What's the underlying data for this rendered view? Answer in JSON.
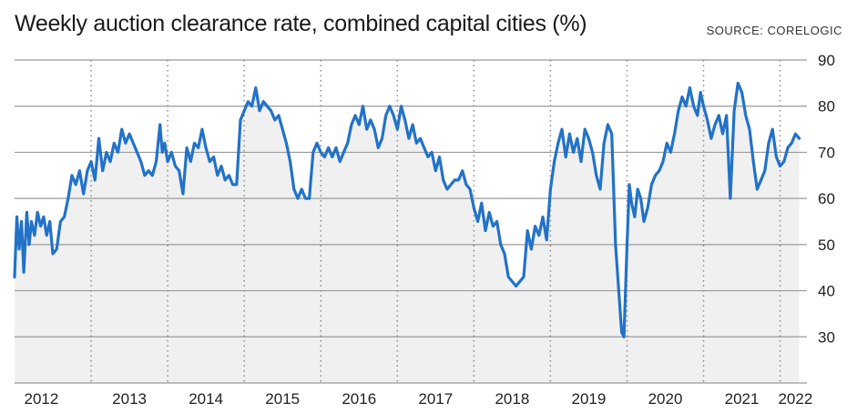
{
  "chart_title": "Weekly auction clearance rate, combined capital cities (%)",
  "source": "SOURCE: CORELOGIC",
  "chart_data": {
    "type": "area",
    "title": "Weekly auction clearance rate, combined capital cities (%)",
    "ylim": [
      20,
      90
    ],
    "xlim": [
      2012.0,
      2022.35
    ],
    "y_ticks": [
      30,
      40,
      50,
      60,
      70,
      80,
      90
    ],
    "x_ticks": [
      {
        "label": "2012",
        "center": 2012.35
      },
      {
        "label": "2013",
        "center": 2013.5
      },
      {
        "label": "2014",
        "center": 2014.5
      },
      {
        "label": "2015",
        "center": 2015.5
      },
      {
        "label": "2016",
        "center": 2016.5
      },
      {
        "label": "2017",
        "center": 2017.5
      },
      {
        "label": "2018",
        "center": 2018.5
      },
      {
        "label": "2019",
        "center": 2019.5
      },
      {
        "label": "2020",
        "center": 2020.5
      },
      {
        "label": "2021",
        "center": 2021.5
      },
      {
        "label": "2022",
        "center": 2022.2
      }
    ],
    "year_dividers": [
      2013,
      2014,
      2015,
      2016,
      2017,
      2018,
      2019,
      2020,
      2021,
      2022
    ],
    "grid": "horizontal solid, vertical dotted at year boundaries",
    "colors": {
      "line": "#2272c8",
      "fill": "#f0f0f0",
      "grid": "#9a9a9a"
    },
    "series": [
      {
        "x": [
          2012.0,
          2012.03,
          2012.06,
          2012.09,
          2012.12,
          2012.16,
          2012.19,
          2012.22,
          2012.26,
          2012.3,
          2012.34,
          2012.38,
          2012.42,
          2012.46,
          2012.5,
          2012.55,
          2012.6,
          2012.65,
          2012.7,
          2012.75,
          2012.8,
          2012.85,
          2012.9,
          2012.95,
          2013.0,
          2013.05,
          2013.1,
          2013.15,
          2013.2,
          2013.25,
          2013.3,
          2013.35,
          2013.4,
          2013.45,
          2013.5,
          2013.55,
          2013.6,
          2013.65,
          2013.7,
          2013.75,
          2013.8,
          2013.85,
          2013.9,
          2013.93,
          2013.96,
          2014.0,
          2014.05,
          2014.1,
          2014.15,
          2014.2,
          2014.25,
          2014.3,
          2014.35,
          2014.4,
          2014.45,
          2014.5,
          2014.55,
          2014.6,
          2014.65,
          2014.7,
          2014.75,
          2014.8,
          2014.85,
          2014.9,
          2014.95,
          2015.0,
          2015.05,
          2015.1,
          2015.15,
          2015.2,
          2015.25,
          2015.3,
          2015.35,
          2015.4,
          2015.45,
          2015.5,
          2015.55,
          2015.6,
          2015.65,
          2015.7,
          2015.75,
          2015.8,
          2015.85,
          2015.9,
          2015.95,
          2016.0,
          2016.05,
          2016.1,
          2016.15,
          2016.2,
          2016.25,
          2016.3,
          2016.35,
          2016.4,
          2016.45,
          2016.5,
          2016.55,
          2016.6,
          2016.65,
          2016.7,
          2016.75,
          2016.8,
          2016.85,
          2016.9,
          2016.95,
          2017.0,
          2017.05,
          2017.1,
          2017.15,
          2017.2,
          2017.25,
          2017.3,
          2017.35,
          2017.4,
          2017.45,
          2017.5,
          2017.55,
          2017.6,
          2017.65,
          2017.7,
          2017.75,
          2017.8,
          2017.85,
          2017.9,
          2017.95,
          2018.0,
          2018.05,
          2018.1,
          2018.15,
          2018.2,
          2018.25,
          2018.3,
          2018.35,
          2018.4,
          2018.45,
          2018.5,
          2018.55,
          2018.6,
          2018.65,
          2018.7,
          2018.75,
          2018.8,
          2018.85,
          2018.9,
          2018.95,
          2019.0,
          2019.05,
          2019.1,
          2019.15,
          2019.2,
          2019.25,
          2019.3,
          2019.35,
          2019.4,
          2019.45,
          2019.5,
          2019.55,
          2019.6,
          2019.65,
          2019.7,
          2019.75,
          2019.8,
          2019.85,
          2019.9,
          2019.93,
          2019.96,
          2020.0,
          2020.03,
          2020.06,
          2020.1,
          2020.14,
          2020.18,
          2020.22,
          2020.27,
          2020.32,
          2020.37,
          2020.42,
          2020.47,
          2020.52,
          2020.57,
          2020.62,
          2020.67,
          2020.72,
          2020.77,
          2020.82,
          2020.87,
          2020.92,
          2020.96,
          2021.0,
          2021.05,
          2021.1,
          2021.15,
          2021.2,
          2021.25,
          2021.3,
          2021.35,
          2021.4,
          2021.45,
          2021.5,
          2021.55,
          2021.6,
          2021.65,
          2021.7,
          2021.75,
          2021.8,
          2021.85,
          2021.9,
          2021.95,
          2022.0,
          2022.05,
          2022.1,
          2022.15,
          2022.2,
          2022.25
        ],
        "values": [
          43,
          56,
          49,
          55,
          44,
          57,
          50,
          55,
          52,
          57,
          54,
          56,
          52,
          55,
          48,
          49,
          55,
          56,
          60,
          65,
          63,
          66,
          61,
          66,
          68,
          64,
          73,
          66,
          70,
          68,
          72,
          70,
          75,
          72,
          74,
          72,
          70,
          68,
          65,
          66,
          65,
          68,
          76,
          70,
          72,
          68,
          70,
          67,
          66,
          61,
          71,
          68,
          72,
          71,
          75,
          71,
          68,
          69,
          65,
          67,
          64,
          65,
          63,
          63,
          77,
          79,
          81,
          80,
          84,
          79,
          81,
          80,
          79,
          77,
          78,
          75,
          72,
          68,
          62,
          60,
          62,
          60,
          60,
          70,
          72,
          70,
          69,
          71,
          69,
          71,
          68,
          70,
          72,
          76,
          78,
          76,
          80,
          75,
          77,
          75,
          71,
          73,
          78,
          80,
          78,
          75,
          80,
          77,
          73,
          76,
          72,
          73,
          71,
          69,
          70,
          66,
          69,
          64,
          62,
          63,
          64,
          64,
          66,
          63,
          62,
          58,
          55,
          59,
          53,
          57,
          54,
          55,
          50,
          48,
          43,
          42,
          41,
          42,
          43,
          53,
          49,
          54,
          52,
          56,
          51,
          62,
          68,
          72,
          75,
          69,
          74,
          70,
          73,
          68,
          75,
          73,
          70,
          65,
          62,
          72,
          76,
          74,
          50,
          38,
          31,
          30,
          50,
          63,
          59,
          56,
          62,
          60,
          55,
          58,
          63,
          65,
          66,
          68,
          72,
          70,
          74,
          79,
          82,
          80,
          84,
          80,
          78,
          83,
          80,
          77,
          73,
          76,
          78,
          74,
          78,
          60,
          79,
          85,
          83,
          78,
          75,
          68,
          62,
          64,
          66,
          72,
          75,
          69,
          67,
          68,
          71,
          72,
          74,
          73
        ]
      }
    ]
  }
}
